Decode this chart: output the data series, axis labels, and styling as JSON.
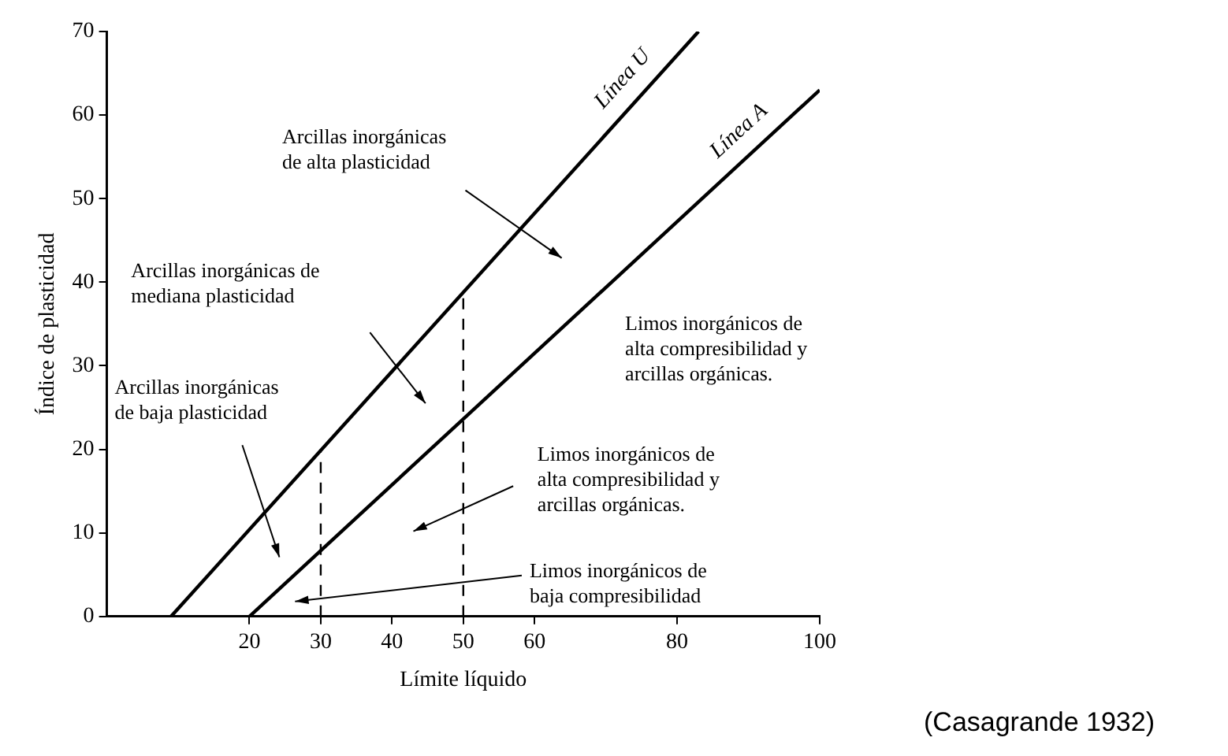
{
  "chart_data": {
    "type": "line",
    "xlabel": "Límite líquido",
    "ylabel": "Índice de plasticidad",
    "xlim": [
      0,
      100
    ],
    "xticks": [
      20,
      30,
      40,
      50,
      60,
      80,
      100
    ],
    "ylim": [
      0,
      70
    ],
    "yticks": [
      0,
      10,
      20,
      30,
      40,
      50,
      60,
      70
    ],
    "grid": false,
    "legend": false,
    "marker": "none",
    "series": [
      {
        "name": "Línea U",
        "color": "#000000",
        "x": [
          9,
          83
        ],
        "values": [
          0,
          70
        ],
        "line_style": "solid"
      },
      {
        "name": "Línea A",
        "color": "#000000",
        "x": [
          20,
          100
        ],
        "values": [
          0,
          63
        ],
        "line_style": "solid"
      },
      {
        "color": "#000000",
        "x": [
          30,
          30
        ],
        "values": [
          0,
          20
        ],
        "line_style": "dashed"
      },
      {
        "color": "#000000",
        "x": [
          50,
          50
        ],
        "values": [
          0,
          39
        ],
        "line_style": "dashed"
      }
    ],
    "annotations": [
      "Arcillas inorgánicas\nde alta plasticidad",
      "Arcillas inorgánicas de\nmediana plasticidad",
      "Limos inorgánicos de\nalta compresibilidad y\narcillas orgánicas.",
      "Arcillas inorgánicas\nde baja plasticidad",
      "Limos inorgánicos de\nalta compresibilidad y\narcillas orgánicas.",
      "Limos inorgánicos de\nbaja compresibilidad",
      "(Casagrande 1932)"
    ]
  }
}
